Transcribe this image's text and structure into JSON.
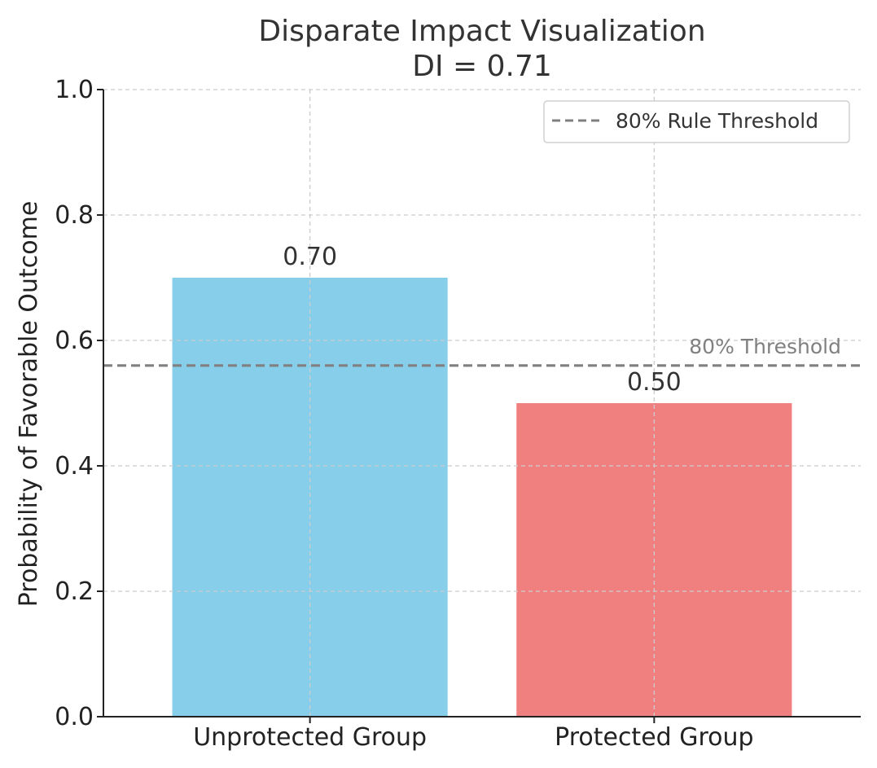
{
  "chart_data": {
    "type": "bar",
    "title": "Disparate Impact Visualization",
    "subtitle": "DI = 0.71",
    "xlabel": "",
    "ylabel": "Probability of Favorable Outcome",
    "categories": [
      "Unprotected Group",
      "Protected Group"
    ],
    "values": [
      0.7,
      0.5
    ],
    "value_labels": [
      "0.70",
      "0.50"
    ],
    "colors": [
      "#87ceeb",
      "#f08080"
    ],
    "ylim": [
      0,
      1.0
    ],
    "yticks": [
      0.0,
      0.2,
      0.4,
      0.6,
      0.8,
      1.0
    ],
    "ytick_labels": [
      "0.0",
      "0.2",
      "0.4",
      "0.6",
      "0.8",
      "1.0"
    ],
    "grid": true,
    "threshold": {
      "value": 0.56,
      "label": "80% Threshold",
      "color": "#808080"
    },
    "legend": {
      "placement": "top-right",
      "entries": [
        "80% Rule Threshold"
      ]
    }
  }
}
